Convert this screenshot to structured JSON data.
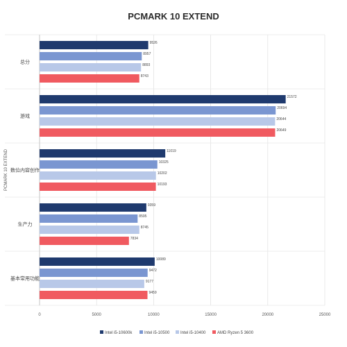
{
  "chart_data": {
    "type": "bar",
    "orientation": "horizontal",
    "title": "PCMARK 10 EXTEND",
    "ylabel": "PCMARK 10 EXTEND",
    "xlabel": "",
    "categories": [
      "总分",
      "游戏",
      "数位内容创作",
      "生产力",
      "基本常用功能"
    ],
    "series": [
      {
        "name": "Intel i5-10600k",
        "color": "#1f3a6e",
        "values": [
          9526,
          21572,
          11019,
          9359,
          10089
        ]
      },
      {
        "name": "Intel i5-10500",
        "color": "#7a96d1",
        "values": [
          8957,
          20694,
          10325,
          8595,
          9472
        ]
      },
      {
        "name": "Intel i5-10400",
        "color": "#b8c8e8",
        "values": [
          8893,
          20644,
          10202,
          8745,
          9177
        ]
      },
      {
        "name": "AMD Ryzen 5 3600",
        "color": "#f05a60",
        "values": [
          8743,
          20649,
          10193,
          7834,
          9459
        ]
      }
    ],
    "xlim": [
      0,
      25000
    ],
    "xticks": [
      0,
      5000,
      10000,
      15000,
      20000,
      25000
    ],
    "grid": true,
    "legend_position": "bottom"
  }
}
